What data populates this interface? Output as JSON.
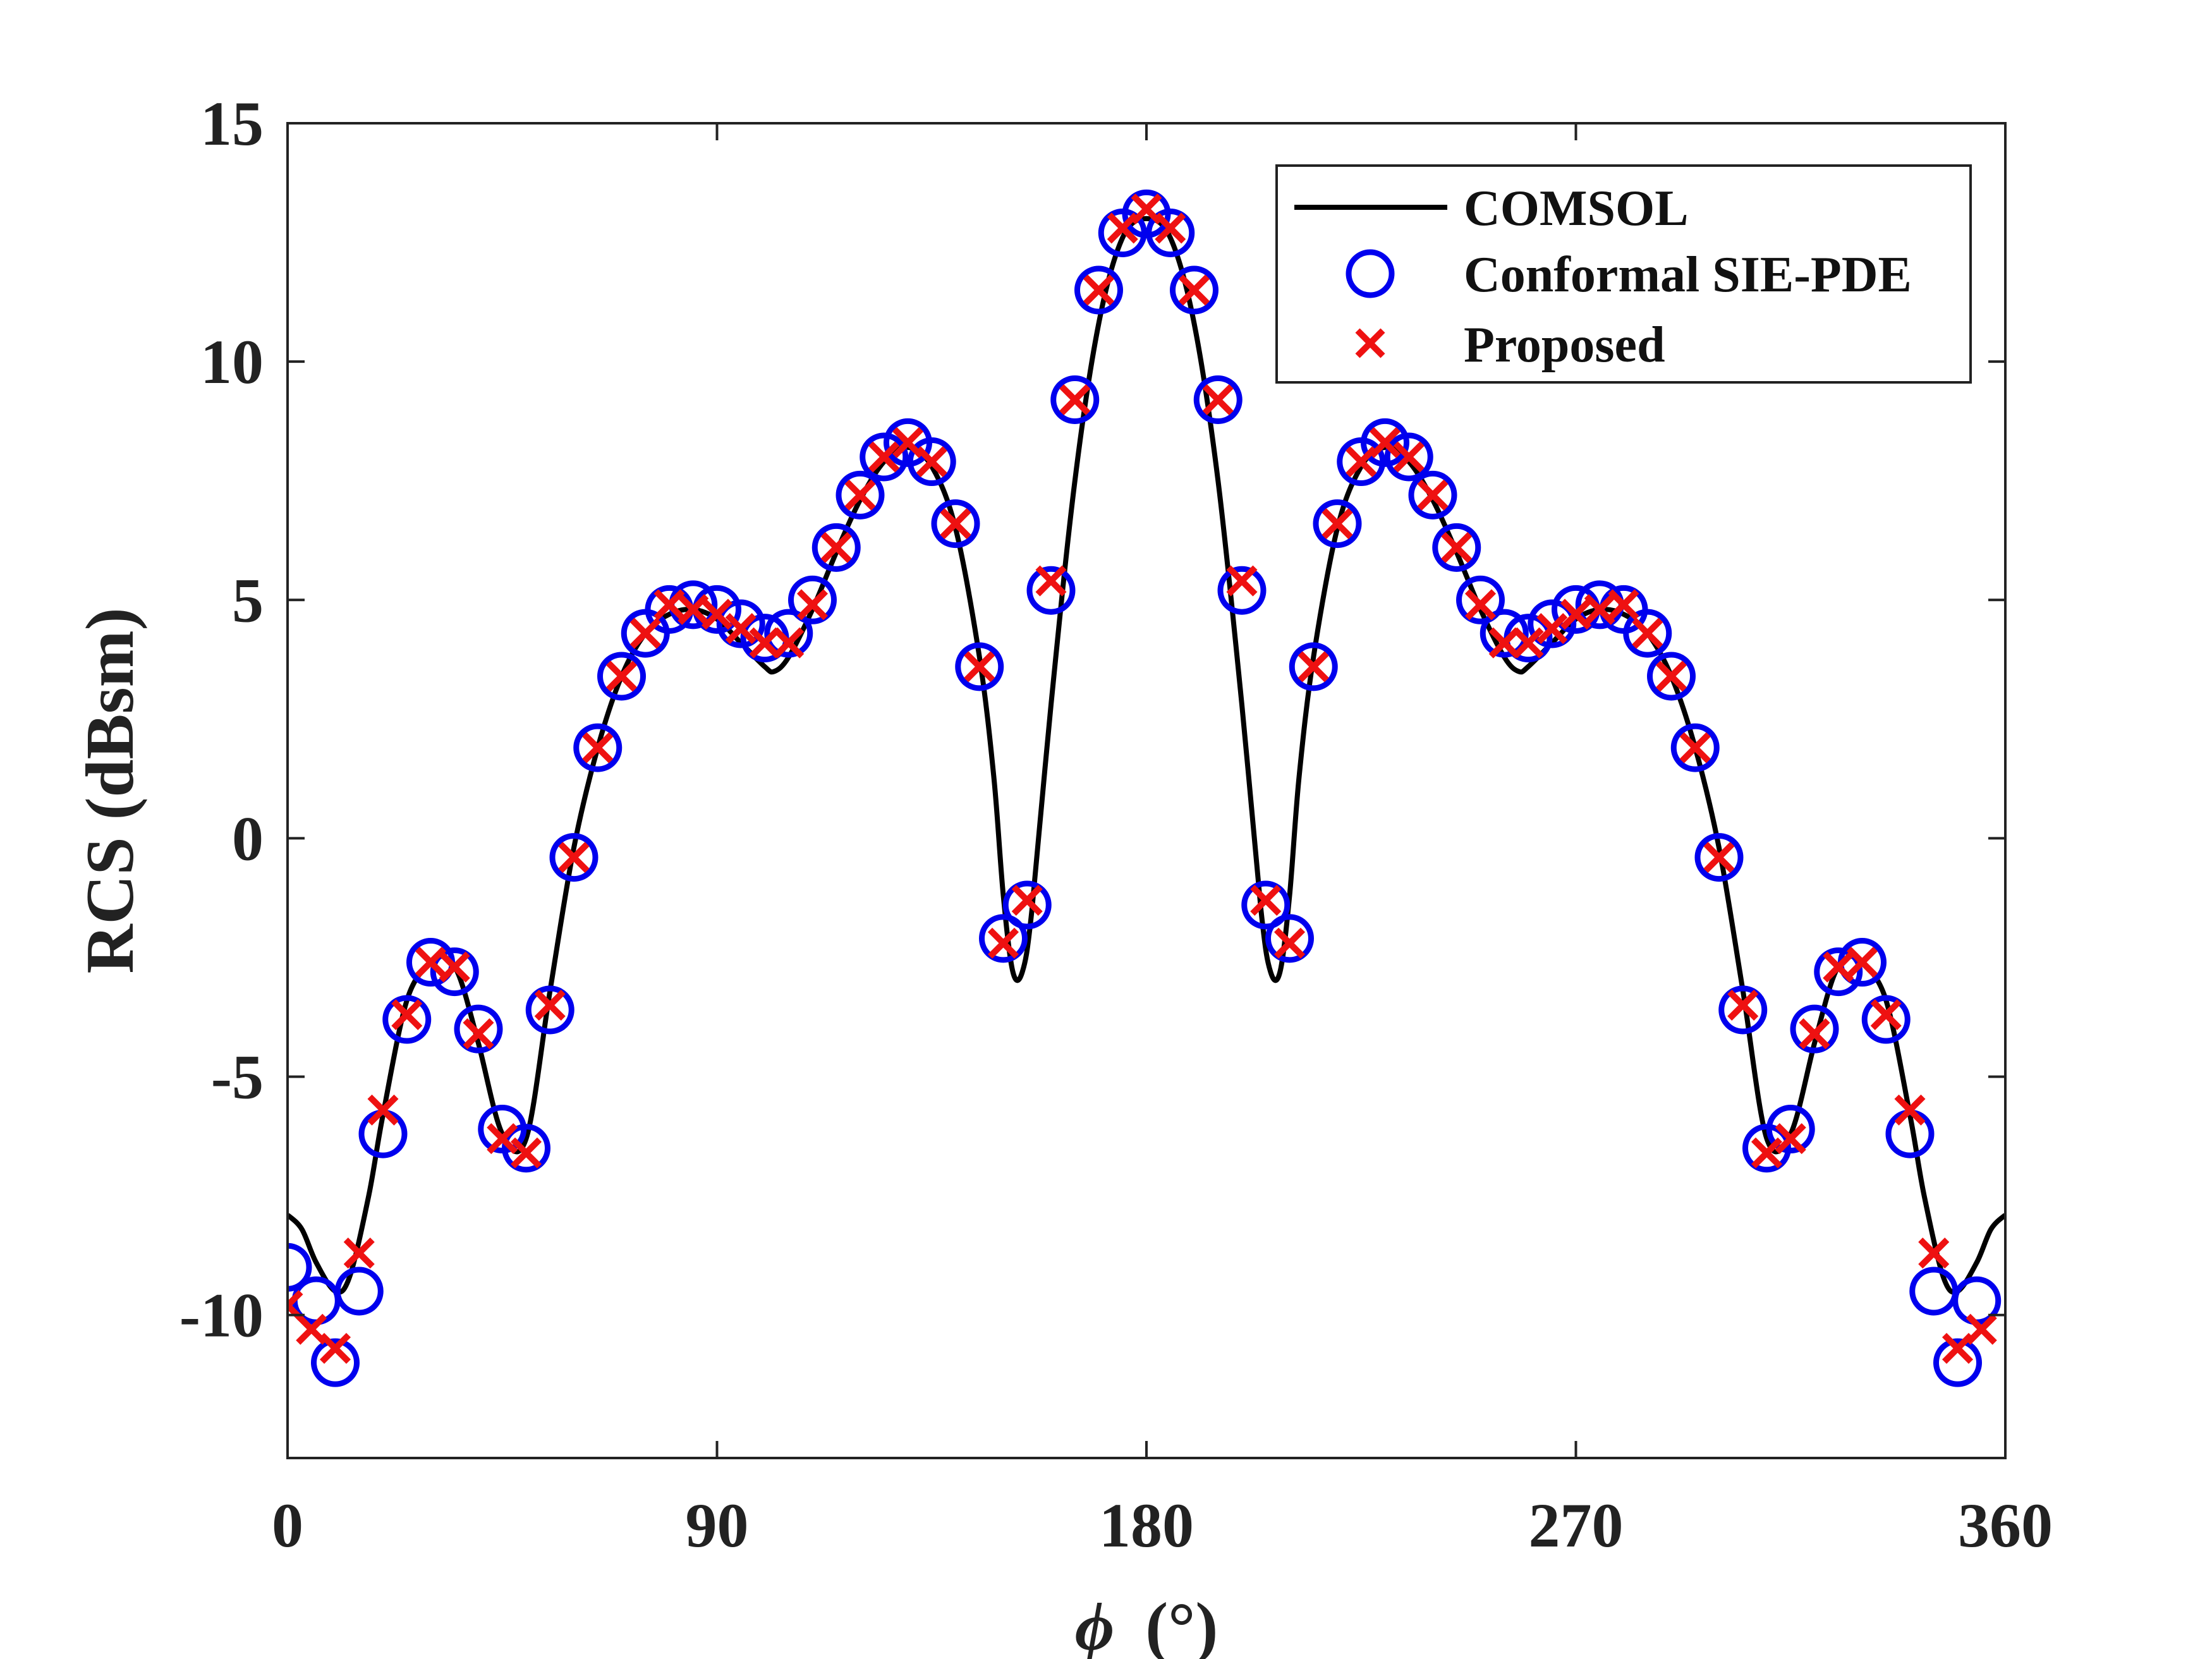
{
  "chart_data": {
    "type": "line",
    "title": "",
    "xlabel_symbol": "ϕ",
    "xlabel_unit": "(°)",
    "ylabel": "RCS (dBsm)",
    "xlim": [
      0,
      360
    ],
    "ylim": [
      -13,
      15
    ],
    "xticks": [
      0,
      90,
      180,
      270,
      360
    ],
    "yticks": [
      15,
      10,
      5,
      0,
      -5,
      -10
    ],
    "x_tick_labels": [
      "0",
      "90",
      "180",
      "270",
      "360"
    ],
    "y_tick_labels": [
      "15",
      "10",
      "5",
      "0",
      "-5",
      "-10"
    ],
    "grid": false,
    "legend_position": "top-right",
    "colors": {
      "comsol": "#000000",
      "sie_pde": "#0000ee",
      "proposed": "#ee1111"
    },
    "legend": [
      "COMSOL",
      "Conformal SIE-PDE",
      "Proposed"
    ],
    "series": [
      {
        "name": "COMSOL",
        "style": "line",
        "x": [
          0,
          3,
          6,
          10,
          13,
          17,
          20,
          25,
          30,
          33,
          36,
          40,
          45,
          50,
          55,
          60,
          65,
          70,
          75,
          80,
          85,
          90,
          95,
          100,
          102,
          105,
          110,
          115,
          120,
          125,
          130,
          135,
          140,
          145,
          148,
          150,
          152,
          154,
          156,
          160,
          165,
          170,
          175,
          180,
          185,
          190,
          195,
          200,
          204,
          206,
          208,
          210,
          212,
          215,
          220,
          225,
          230,
          235,
          240,
          245,
          250,
          255,
          258,
          260,
          265,
          270,
          275,
          280,
          285,
          290,
          295,
          300,
          305,
          310,
          315,
          320,
          324,
          327,
          330,
          335,
          340,
          343,
          347,
          350,
          354,
          357,
          360
        ],
        "y": [
          -7.9,
          -8.2,
          -8.9,
          -9.5,
          -9.2,
          -7.5,
          -5.8,
          -3.4,
          -2.6,
          -2.5,
          -2.9,
          -4.3,
          -6.2,
          -6.3,
          -3.2,
          -0.2,
          1.9,
          3.4,
          4.3,
          4.7,
          4.8,
          4.6,
          4.1,
          3.6,
          3.5,
          3.8,
          4.8,
          6.0,
          7.1,
          7.9,
          8.2,
          7.8,
          6.5,
          3.8,
          1.3,
          -1.2,
          -2.8,
          -2.8,
          -1.5,
          2.8,
          7.5,
          10.8,
          12.6,
          13.0,
          12.6,
          10.8,
          7.5,
          2.8,
          -1.5,
          -2.8,
          -2.8,
          -1.2,
          1.3,
          3.8,
          6.5,
          7.8,
          8.2,
          7.9,
          7.1,
          6.0,
          4.8,
          3.8,
          3.5,
          3.6,
          4.1,
          4.6,
          4.8,
          4.7,
          4.3,
          3.4,
          1.9,
          -0.2,
          -3.2,
          -6.3,
          -6.2,
          -4.3,
          -2.9,
          -2.5,
          -2.6,
          -3.4,
          -5.8,
          -7.5,
          -9.2,
          -9.5,
          -8.9,
          -8.2,
          -7.9
        ]
      },
      {
        "name": "Conformal SIE-PDE",
        "style": "marker-circle",
        "x": [
          0,
          6,
          10,
          15,
          20,
          25,
          30,
          35,
          40,
          45,
          50,
          55,
          60,
          65,
          70,
          75,
          80,
          85,
          90,
          95,
          100,
          105,
          110,
          115,
          120,
          125,
          130,
          135,
          140,
          145,
          150,
          155,
          160,
          165,
          170,
          175,
          180,
          185,
          190,
          195,
          200,
          205,
          210,
          215,
          220,
          225,
          230,
          235,
          240,
          245,
          250,
          255,
          260,
          265,
          270,
          275,
          280,
          285,
          290,
          295,
          300,
          305,
          310,
          315,
          320,
          325,
          330,
          335,
          340,
          345,
          350,
          354
        ],
        "y": [
          -9.0,
          -9.7,
          -11.0,
          -9.5,
          -6.2,
          -3.8,
          -2.6,
          -2.8,
          -4.0,
          -6.1,
          -6.5,
          -3.6,
          -0.4,
          1.9,
          3.4,
          4.3,
          4.8,
          4.9,
          4.8,
          4.5,
          4.2,
          4.3,
          5.0,
          6.1,
          7.2,
          8.0,
          8.3,
          7.9,
          6.6,
          3.6,
          -2.1,
          -1.4,
          5.2,
          9.2,
          11.5,
          12.7,
          13.1,
          12.7,
          11.5,
          9.2,
          5.2,
          -1.4,
          -2.1,
          3.6,
          6.6,
          7.9,
          8.3,
          8.0,
          7.2,
          6.1,
          5.0,
          4.3,
          4.2,
          4.5,
          4.8,
          4.9,
          4.8,
          4.3,
          3.4,
          1.9,
          -0.4,
          -3.6,
          -6.5,
          -6.1,
          -4.0,
          -2.8,
          -2.6,
          -3.8,
          -6.2,
          -9.5,
          -11.0,
          -9.7
        ]
      },
      {
        "name": "Proposed",
        "style": "marker-x",
        "x": [
          0,
          5,
          10,
          15,
          20,
          25,
          30,
          35,
          40,
          45,
          50,
          55,
          60,
          65,
          70,
          75,
          80,
          85,
          90,
          95,
          100,
          105,
          110,
          115,
          120,
          125,
          130,
          135,
          140,
          145,
          150,
          155,
          160,
          165,
          170,
          175,
          180,
          185,
          190,
          195,
          200,
          205,
          210,
          215,
          220,
          225,
          230,
          235,
          240,
          245,
          250,
          255,
          260,
          265,
          270,
          275,
          280,
          285,
          290,
          295,
          300,
          305,
          310,
          315,
          320,
          325,
          330,
          335,
          340,
          345,
          350,
          355
        ],
        "y": [
          -9.8,
          -10.3,
          -10.7,
          -8.7,
          -5.7,
          -3.7,
          -2.6,
          -2.7,
          -4.1,
          -6.3,
          -6.6,
          -3.5,
          -0.4,
          1.9,
          3.4,
          4.3,
          4.9,
          4.8,
          4.7,
          4.4,
          4.1,
          4.1,
          4.9,
          6.1,
          7.2,
          8.0,
          8.3,
          7.9,
          6.6,
          3.6,
          -2.2,
          -1.3,
          5.4,
          9.2,
          11.5,
          12.8,
          13.2,
          12.8,
          11.5,
          9.2,
          5.4,
          -1.3,
          -2.2,
          3.6,
          6.6,
          7.9,
          8.3,
          8.0,
          7.2,
          6.1,
          4.9,
          4.1,
          4.1,
          4.4,
          4.7,
          4.8,
          4.9,
          4.3,
          3.4,
          1.9,
          -0.4,
          -3.5,
          -6.6,
          -6.3,
          -4.1,
          -2.7,
          -2.6,
          -3.7,
          -5.7,
          -8.7,
          -10.7,
          -10.3
        ]
      }
    ]
  }
}
